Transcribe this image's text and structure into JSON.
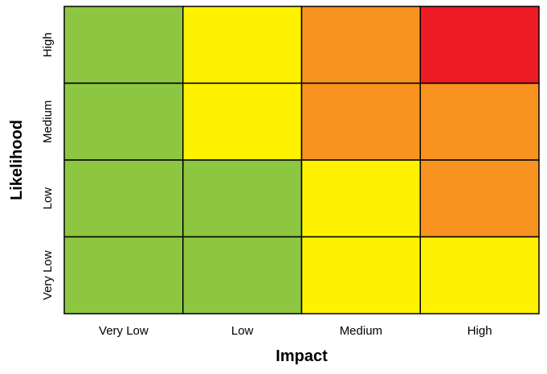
{
  "chart_data": {
    "type": "heatmap",
    "title": "",
    "xlabel": "Impact",
    "ylabel": "Likelihood",
    "x_categories": [
      "Very Low",
      "Low",
      "Medium",
      "High"
    ],
    "y_categories": [
      "Very Low",
      "Low",
      "Medium",
      "High"
    ],
    "cell_levels": [
      [
        "green",
        "yellow",
        "orange",
        "red"
      ],
      [
        "green",
        "yellow",
        "orange",
        "orange"
      ],
      [
        "green",
        "green",
        "yellow",
        "orange"
      ],
      [
        "green",
        "green",
        "yellow",
        "yellow"
      ]
    ],
    "row_order": "top-to-bottom: High, Medium, Low, Very Low",
    "level_colors": {
      "green": "#8DC641",
      "yellow": "#FFF200",
      "orange": "#F7931E",
      "red": "#ED1C24"
    },
    "grid_color": "#000000",
    "legend": "none"
  }
}
